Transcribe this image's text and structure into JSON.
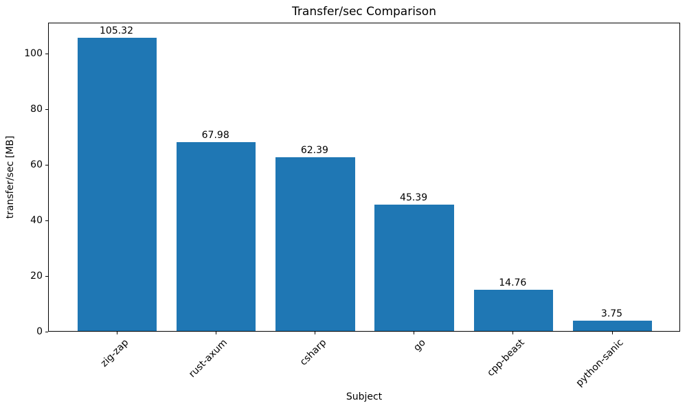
{
  "chart_data": {
    "type": "bar",
    "title": "Transfer/sec Comparison",
    "xlabel": "Subject",
    "ylabel": "transfer/sec [MB]",
    "categories": [
      "zig-zap",
      "rust-axum",
      "csharp",
      "go",
      "cpp-beast",
      "python-sanic"
    ],
    "values": [
      105.32,
      67.98,
      62.39,
      45.39,
      14.76,
      3.75
    ],
    "value_labels": [
      "105.32",
      "67.98",
      "62.39",
      "45.39",
      "14.76",
      "3.75"
    ],
    "yticks": [
      0,
      20,
      40,
      60,
      80,
      100
    ],
    "ytick_labels": [
      "0",
      "20",
      "40",
      "60",
      "80",
      "100"
    ],
    "ylim": [
      0,
      111.1
    ],
    "bar_width_fraction": 0.8,
    "grid": false,
    "legend": null,
    "colors": {
      "bar": "#1f77b4",
      "text": "#000000",
      "spine": "#000000",
      "background": "#ffffff"
    },
    "xtick_label_rotation_deg": 45
  }
}
